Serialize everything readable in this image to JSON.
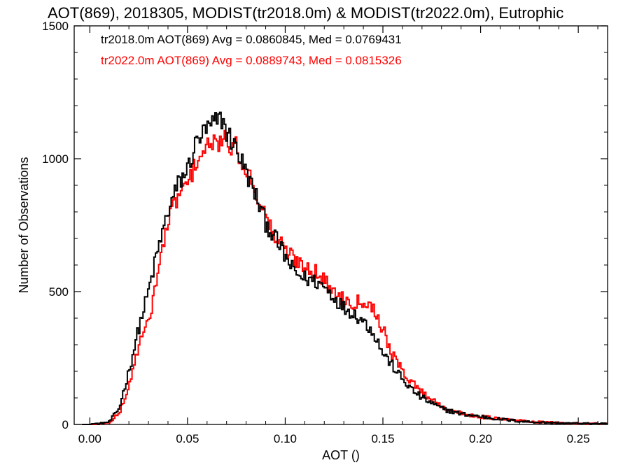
{
  "chart_data": {
    "type": "line",
    "title": "AOT(869), 2018305, MODIST(tr2018.0m) & MODIST(tr2022.0m), Eutrophic",
    "xlabel": "AOT ()",
    "ylabel": "Number of Observations",
    "xlim": [
      -0.008,
      0.265
    ],
    "ylim": [
      0,
      1500
    ],
    "x_ticks": [
      0.0,
      0.05,
      0.1,
      0.15,
      0.2,
      0.25
    ],
    "x_tick_labels": [
      "0.00",
      "0.05",
      "0.10",
      "0.15",
      "0.20",
      "0.25"
    ],
    "y_ticks": [
      0,
      500,
      1000,
      1500
    ],
    "y_tick_labels": [
      "0",
      "500",
      "1000",
      "1500"
    ],
    "legend": {
      "placement": "top-left",
      "entries": [
        {
          "text": "tr2018.0m AOT(869) Avg = 0.0860845, Med = 0.0769431",
          "color": "#000000"
        },
        {
          "text": "tr2022.0m AOT(869) Avg = 0.0889743, Med = 0.0815326",
          "color": "#ff0000"
        }
      ]
    },
    "series": [
      {
        "name": "tr2018.0m",
        "color": "#000000",
        "points": [
          [
            0.0,
            2
          ],
          [
            0.005,
            3
          ],
          [
            0.01,
            10
          ],
          [
            0.015,
            60
          ],
          [
            0.02,
            200
          ],
          [
            0.025,
            360
          ],
          [
            0.03,
            500
          ],
          [
            0.035,
            660
          ],
          [
            0.04,
            800
          ],
          [
            0.045,
            900
          ],
          [
            0.05,
            960
          ],
          [
            0.055,
            1070
          ],
          [
            0.06,
            1110
          ],
          [
            0.065,
            1140
          ],
          [
            0.068,
            1150
          ],
          [
            0.07,
            1100
          ],
          [
            0.075,
            1040
          ],
          [
            0.08,
            950
          ],
          [
            0.085,
            860
          ],
          [
            0.09,
            760
          ],
          [
            0.095,
            700
          ],
          [
            0.1,
            630
          ],
          [
            0.105,
            570
          ],
          [
            0.11,
            550
          ],
          [
            0.115,
            540
          ],
          [
            0.12,
            520
          ],
          [
            0.125,
            480
          ],
          [
            0.13,
            440
          ],
          [
            0.135,
            420
          ],
          [
            0.14,
            390
          ],
          [
            0.145,
            350
          ],
          [
            0.15,
            270
          ],
          [
            0.155,
            220
          ],
          [
            0.16,
            170
          ],
          [
            0.165,
            130
          ],
          [
            0.17,
            100
          ],
          [
            0.175,
            80
          ],
          [
            0.18,
            60
          ],
          [
            0.185,
            50
          ],
          [
            0.19,
            40
          ],
          [
            0.2,
            30
          ],
          [
            0.21,
            20
          ],
          [
            0.22,
            12
          ],
          [
            0.23,
            8
          ],
          [
            0.24,
            5
          ],
          [
            0.25,
            4
          ],
          [
            0.265,
            2
          ]
        ]
      },
      {
        "name": "tr2022.0m",
        "color": "#ff0000",
        "points": [
          [
            0.0,
            1
          ],
          [
            0.005,
            2
          ],
          [
            0.01,
            8
          ],
          [
            0.015,
            40
          ],
          [
            0.02,
            140
          ],
          [
            0.025,
            300
          ],
          [
            0.03,
            380
          ],
          [
            0.035,
            580
          ],
          [
            0.04,
            760
          ],
          [
            0.045,
            860
          ],
          [
            0.05,
            900
          ],
          [
            0.055,
            1000
          ],
          [
            0.06,
            1040
          ],
          [
            0.065,
            1060
          ],
          [
            0.068,
            1070
          ],
          [
            0.07,
            1060
          ],
          [
            0.075,
            1040
          ],
          [
            0.08,
            960
          ],
          [
            0.085,
            880
          ],
          [
            0.09,
            780
          ],
          [
            0.095,
            700
          ],
          [
            0.1,
            660
          ],
          [
            0.105,
            620
          ],
          [
            0.11,
            600
          ],
          [
            0.115,
            580
          ],
          [
            0.12,
            540
          ],
          [
            0.125,
            500
          ],
          [
            0.13,
            470
          ],
          [
            0.135,
            460
          ],
          [
            0.14,
            470
          ],
          [
            0.145,
            440
          ],
          [
            0.15,
            360
          ],
          [
            0.155,
            260
          ],
          [
            0.16,
            200
          ],
          [
            0.165,
            160
          ],
          [
            0.17,
            120
          ],
          [
            0.175,
            95
          ],
          [
            0.18,
            70
          ],
          [
            0.185,
            55
          ],
          [
            0.19,
            40
          ],
          [
            0.2,
            30
          ],
          [
            0.21,
            20
          ],
          [
            0.22,
            14
          ],
          [
            0.23,
            9
          ],
          [
            0.24,
            6
          ],
          [
            0.25,
            4
          ],
          [
            0.265,
            3
          ]
        ]
      }
    ]
  }
}
